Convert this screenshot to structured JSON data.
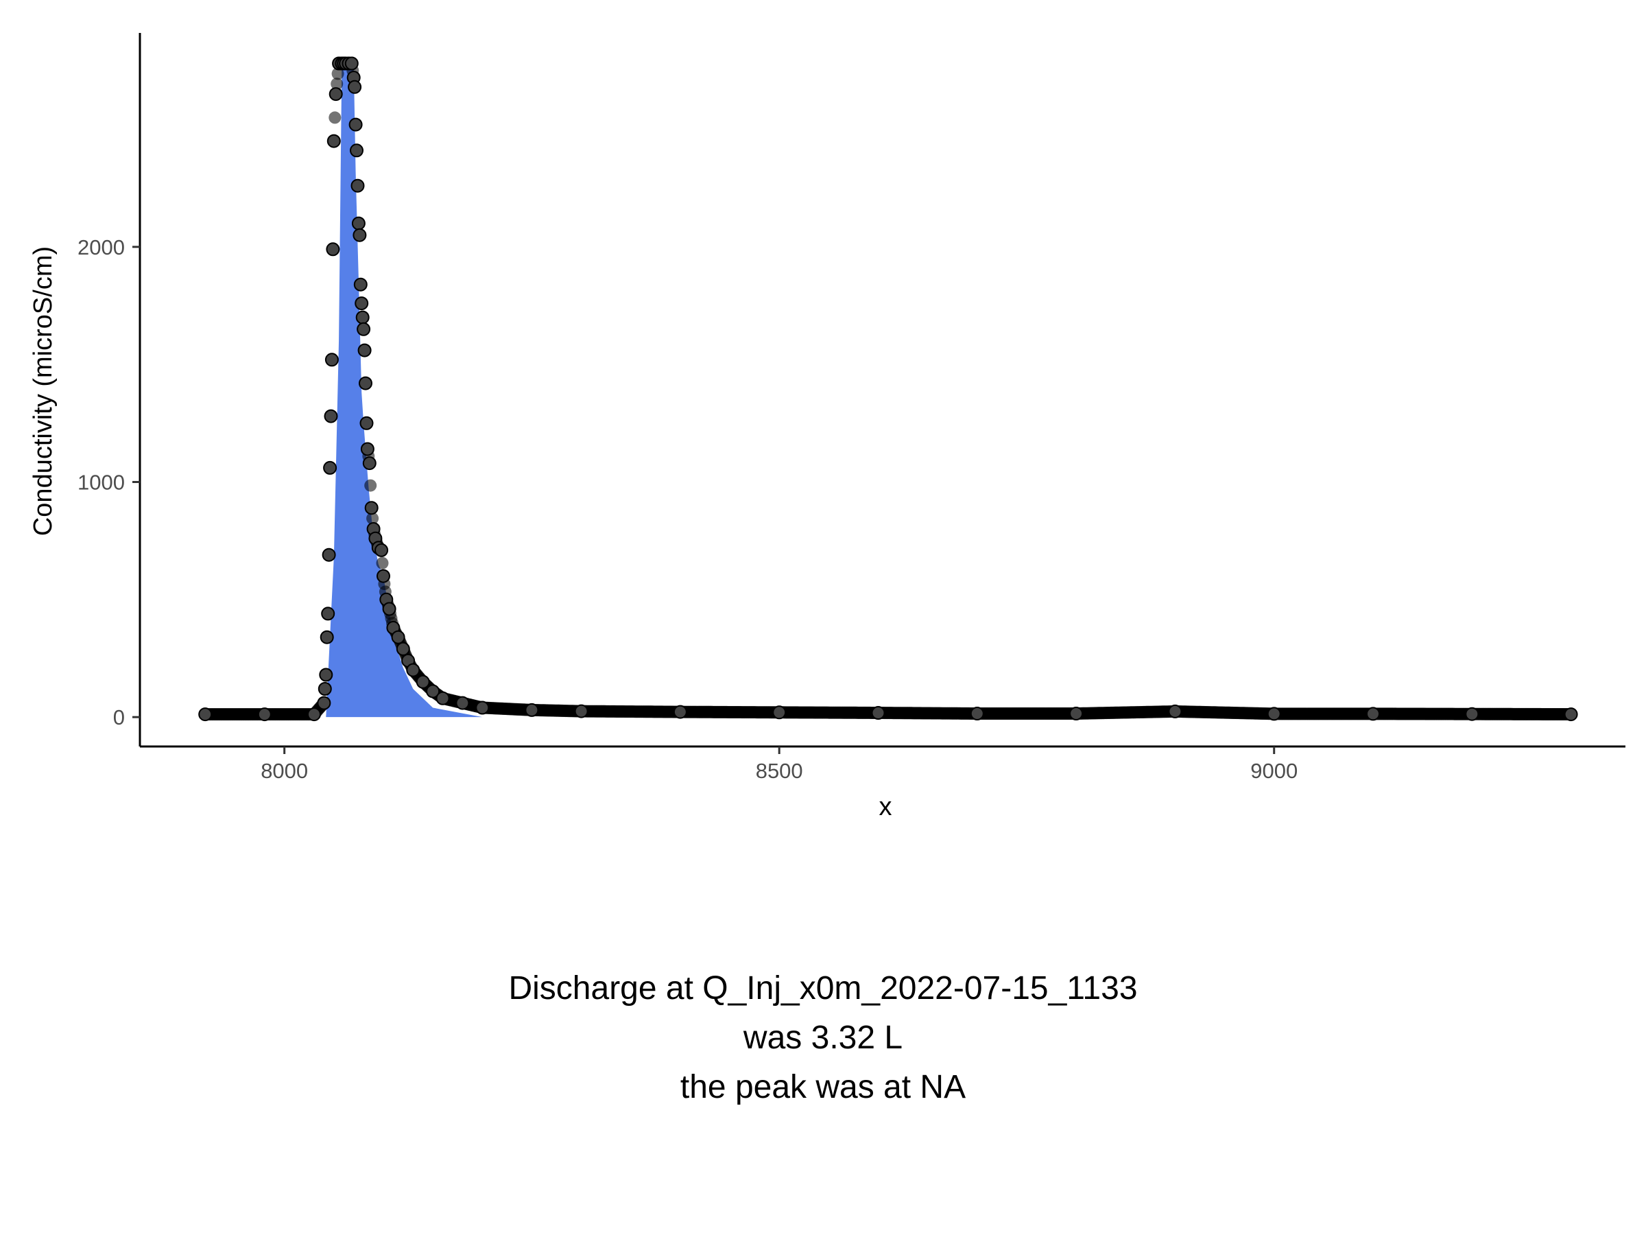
{
  "chart_data": {
    "type": "scatter",
    "xlabel": "x",
    "ylabel": "Conductivity (microS/cm)",
    "xlim": [
      7854,
      9355
    ],
    "ylim": [
      -125,
      2910
    ],
    "x_ticks": [
      8000,
      8500,
      9000
    ],
    "y_ticks": [
      0,
      1000,
      2000
    ],
    "grid": false,
    "colors": {
      "points": "#000000",
      "area_fill": "#5680e9",
      "axis": "#000000"
    },
    "series": [
      {
        "kind": "points",
        "x": [
          7920,
          7980,
          8030,
          8040,
          8041,
          8042,
          8043,
          8044,
          8045,
          8046,
          8047,
          8048,
          8049,
          8050,
          8052,
          8055,
          8058,
          8060,
          8062,
          8065,
          8068,
          8070,
          8071,
          8072,
          8073,
          8074,
          8075,
          8076,
          8077,
          8078,
          8079,
          8080,
          8081,
          8082,
          8083,
          8084,
          8086,
          8088,
          8090,
          8092,
          8095,
          8098,
          8100,
          8103,
          8106,
          8110,
          8115,
          8120,
          8125,
          8130,
          8140,
          8150,
          8160,
          8180,
          8200,
          8250,
          8300,
          8400,
          8500,
          8600,
          8700,
          8800,
          8900,
          9000,
          9100,
          9200,
          9300
        ],
        "y": [
          12,
          12,
          12,
          60,
          120,
          180,
          340,
          440,
          690,
          1060,
          1280,
          1520,
          1990,
          2450,
          2650,
          2780,
          2780,
          2780,
          2780,
          2780,
          2780,
          2720,
          2680,
          2520,
          2410,
          2260,
          2100,
          2050,
          1840,
          1760,
          1700,
          1650,
          1560,
          1420,
          1250,
          1140,
          1080,
          890,
          800,
          760,
          720,
          710,
          600,
          500,
          460,
          380,
          340,
          290,
          240,
          200,
          150,
          110,
          80,
          60,
          40,
          30,
          25,
          22,
          20,
          18,
          15,
          15,
          24,
          14,
          14,
          13,
          12
        ]
      },
      {
        "kind": "area",
        "x": [
          8042,
          8050,
          8055,
          8058,
          8062,
          8066,
          8070,
          8072,
          8075,
          8078,
          8080,
          8085,
          8090,
          8095,
          8100,
          8110,
          8120,
          8130,
          8150,
          8200
        ],
        "y": [
          0,
          680,
          1600,
          2780,
          2780,
          2780,
          2780,
          2320,
          1860,
          1380,
          1250,
          980,
          760,
          650,
          600,
          340,
          210,
          120,
          40,
          0
        ]
      }
    ]
  },
  "caption": {
    "line1": "Discharge at Q_Inj_x0m_2022-07-15_1133",
    "line2": "was 3.32  L",
    "line3": "the peak was at  NA"
  }
}
